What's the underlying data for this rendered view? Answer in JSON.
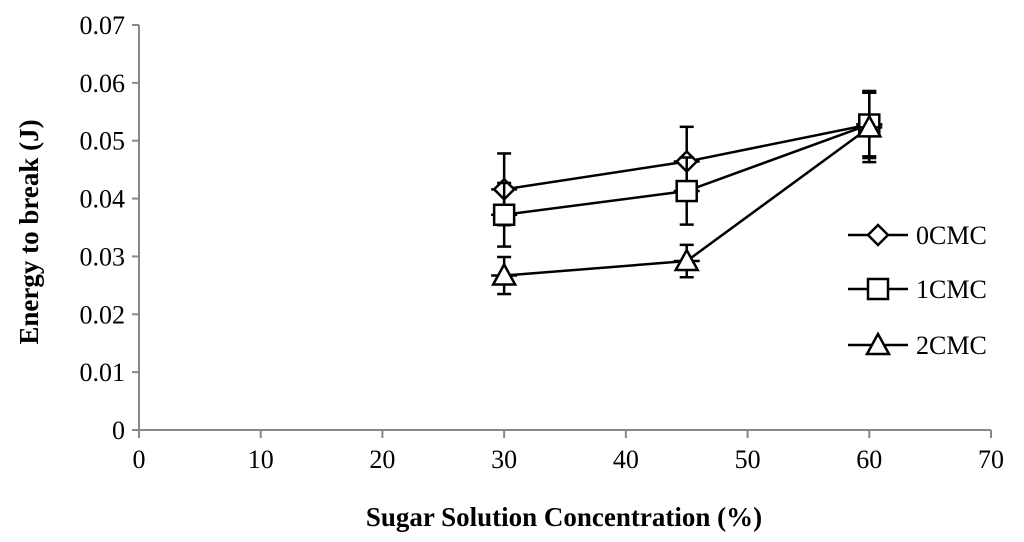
{
  "chart_data": {
    "type": "line",
    "title": "",
    "xlabel": "Sugar Solution Concentration (%)",
    "ylabel": "Energy to break (J)",
    "xlim": [
      0,
      70
    ],
    "ylim": [
      0,
      0.07
    ],
    "x_ticks": [
      0,
      10,
      20,
      30,
      40,
      50,
      60,
      70
    ],
    "x_tick_labels": [
      "0",
      "10",
      "20",
      "30",
      "40",
      "50",
      "60",
      "70"
    ],
    "y_ticks": [
      0,
      0.01,
      0.02,
      0.03,
      0.04,
      0.05,
      0.06,
      0.07
    ],
    "y_tick_labels": [
      "0",
      "0.01",
      "0.02",
      "0.03",
      "0.04",
      "0.05",
      "0.06",
      "0.07"
    ],
    "grid": false,
    "legend_position": "right",
    "x": [
      30,
      45,
      60
    ],
    "series": [
      {
        "name": "0CMC",
        "marker": "diamond",
        "values": [
          0.0416,
          0.0464,
          0.0528
        ],
        "errors": [
          0.0062,
          0.006,
          0.0058
        ]
      },
      {
        "name": "1CMC",
        "marker": "square",
        "values": [
          0.0372,
          0.0413,
          0.0528
        ],
        "errors": [
          0.0055,
          0.0058,
          0.0055
        ]
      },
      {
        "name": "2CMC",
        "marker": "triangle",
        "values": [
          0.0267,
          0.0292,
          0.0523
        ],
        "errors": [
          0.0032,
          0.0028,
          0.006
        ]
      }
    ]
  }
}
